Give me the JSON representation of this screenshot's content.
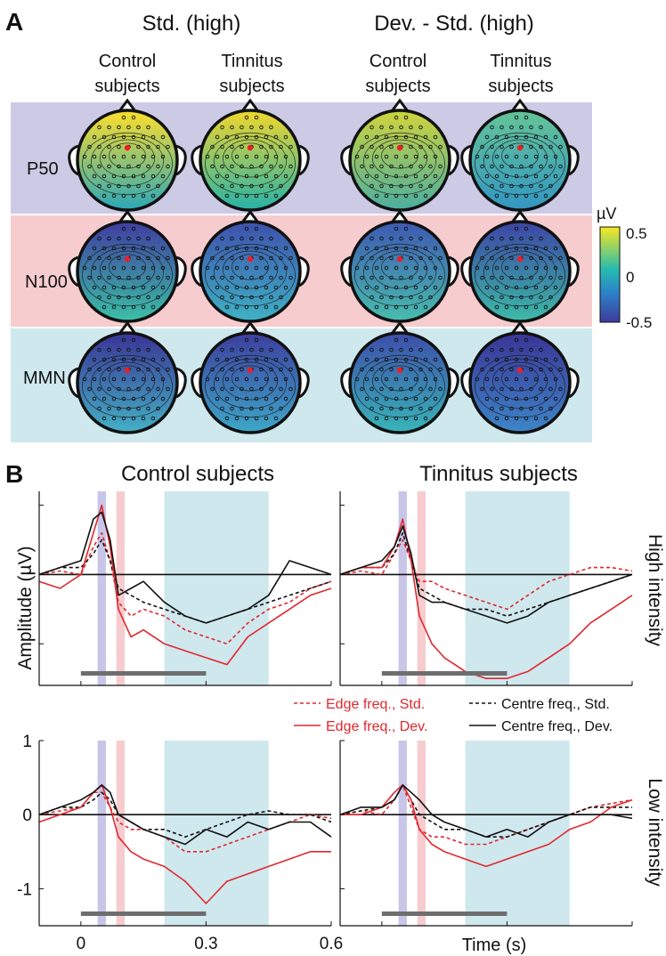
{
  "panel_a": {
    "label": "A",
    "group_titles": [
      "Std. (high)",
      "Dev. - Std. (high)"
    ],
    "column_labels": [
      {
        "line1": "Control",
        "line2": "subjects"
      },
      {
        "line1": "Tinnitus",
        "line2": "subjects"
      },
      {
        "line1": "Control",
        "line2": "subjects"
      },
      {
        "line1": "Tinnitus",
        "line2": "subjects"
      }
    ],
    "row_labels": [
      "P50",
      "N100",
      "MMN"
    ],
    "row_colors": [
      "#cdcae6",
      "#f6cccf",
      "#cfe8ee"
    ],
    "colorbar": {
      "unit": "µV",
      "max_label": "0.5",
      "mid_label": "0",
      "min_label": "-0.5",
      "colors": [
        "#f9e721",
        "#24bbb0",
        "#2d7fc8",
        "#3e3b9a"
      ]
    }
  },
  "panel_b": {
    "label": "B",
    "column_titles": [
      "Control subjects",
      "Tinnitus subjects"
    ],
    "row_titles": [
      "High intensity",
      "Low intensity"
    ],
    "ylabel": "Amplitude (µV)",
    "xlabel": "Time (s)",
    "x_ticks": [
      "0",
      "0.3",
      "0.6"
    ],
    "y_ticks": [
      "1",
      "0",
      "-1"
    ],
    "legend": [
      {
        "label": "Edge freq., Std.",
        "color": "#e0282e",
        "style": "dashed"
      },
      {
        "label": "Centre freq., Std.",
        "color": "#111111",
        "style": "dashed"
      },
      {
        "label": "Edge freq., Dev.",
        "color": "#e0282e",
        "style": "solid"
      },
      {
        "label": "Centre freq., Dev.",
        "color": "#111111",
        "style": "solid"
      }
    ],
    "shading": [
      {
        "start": 0.04,
        "end": 0.06,
        "color": "#c8c6e8"
      },
      {
        "start": 0.085,
        "end": 0.105,
        "color": "#f6cccf"
      },
      {
        "start": 0.2,
        "end": 0.45,
        "color": "#cfe8ee"
      }
    ],
    "bar_color": "#6e6e6e"
  },
  "chart_data": [
    {
      "type": "line",
      "title": "Control subjects",
      "row": "High intensity",
      "xlim": [
        -0.1,
        0.6
      ],
      "ylim": [
        -1.6,
        1.2
      ],
      "x": [
        -0.1,
        -0.05,
        0,
        0.03,
        0.05,
        0.07,
        0.09,
        0.12,
        0.15,
        0.2,
        0.25,
        0.3,
        0.35,
        0.4,
        0.45,
        0.5,
        0.55,
        0.6
      ],
      "series": [
        {
          "name": "Edge freq., Std.",
          "values": [
            0,
            0.05,
            0,
            0.4,
            0.6,
            0.2,
            -0.4,
            -0.6,
            -0.5,
            -0.6,
            -0.8,
            -0.9,
            -1.0,
            -0.7,
            -0.5,
            -0.4,
            -0.2,
            -0.1
          ]
        },
        {
          "name": "Centre freq., Std.",
          "values": [
            0,
            0.1,
            0.1,
            0.3,
            0.5,
            0.2,
            -0.2,
            -0.3,
            -0.4,
            -0.5,
            -0.6,
            -0.7,
            -0.6,
            -0.5,
            -0.4,
            -0.3,
            -0.2,
            -0.1
          ]
        },
        {
          "name": "Edge freq., Dev.",
          "values": [
            -0.1,
            -0.2,
            0,
            0.6,
            1.0,
            0.4,
            -0.5,
            -0.9,
            -0.8,
            -1.0,
            -1.1,
            -1.2,
            -1.3,
            -0.9,
            -0.7,
            -0.5,
            -0.3,
            -0.2
          ]
        },
        {
          "name": "Centre freq., Dev.",
          "values": [
            0,
            0.1,
            0.2,
            0.8,
            0.9,
            0.5,
            -0.3,
            -0.2,
            -0.1,
            -0.4,
            -0.6,
            -0.7,
            -0.6,
            -0.5,
            -0.3,
            0.2,
            0.1,
            0
          ]
        }
      ]
    },
    {
      "type": "line",
      "title": "Tinnitus subjects",
      "row": "High intensity",
      "xlim": [
        -0.1,
        0.6
      ],
      "ylim": [
        -1.6,
        1.2
      ],
      "x": [
        -0.1,
        -0.05,
        0,
        0.03,
        0.05,
        0.07,
        0.09,
        0.12,
        0.15,
        0.2,
        0.25,
        0.3,
        0.35,
        0.4,
        0.45,
        0.5,
        0.55,
        0.6
      ],
      "series": [
        {
          "name": "Edge freq., Std.",
          "values": [
            0,
            0.05,
            0,
            0.3,
            0.5,
            0.2,
            -0.1,
            -0.1,
            -0.2,
            -0.3,
            -0.4,
            -0.5,
            -0.3,
            -0.1,
            0,
            0.1,
            0.1,
            0.05
          ]
        },
        {
          "name": "Centre freq., Std.",
          "values": [
            0,
            0.1,
            0.1,
            0.3,
            0.6,
            0.2,
            -0.2,
            -0.3,
            -0.4,
            -0.5,
            -0.5,
            -0.6,
            -0.5,
            -0.4,
            -0.3,
            -0.2,
            -0.1,
            0
          ]
        },
        {
          "name": "Edge freq., Dev.",
          "values": [
            0,
            0.1,
            0.1,
            0.4,
            0.8,
            0.2,
            -0.6,
            -1.0,
            -1.2,
            -1.4,
            -1.5,
            -1.5,
            -1.4,
            -1.2,
            -1.0,
            -0.7,
            -0.5,
            -0.3
          ]
        },
        {
          "name": "Centre freq., Dev.",
          "values": [
            0,
            0.1,
            0.2,
            0.4,
            0.7,
            0.3,
            -0.3,
            -0.4,
            -0.4,
            -0.5,
            -0.6,
            -0.7,
            -0.6,
            -0.4,
            -0.3,
            -0.2,
            -0.1,
            0
          ]
        }
      ]
    },
    {
      "type": "line",
      "title": "Control subjects",
      "row": "Low intensity",
      "xlim": [
        -0.1,
        0.6
      ],
      "ylim": [
        -1.5,
        1.0
      ],
      "x": [
        -0.1,
        -0.05,
        0,
        0.03,
        0.05,
        0.07,
        0.09,
        0.12,
        0.15,
        0.2,
        0.25,
        0.3,
        0.35,
        0.4,
        0.45,
        0.5,
        0.55,
        0.6
      ],
      "series": [
        {
          "name": "Edge freq., Std.",
          "values": [
            0,
            0.05,
            0.1,
            0.3,
            0.3,
            0.1,
            -0.1,
            -0.2,
            -0.2,
            -0.3,
            -0.5,
            -0.5,
            -0.4,
            -0.3,
            -0.2,
            -0.1,
            0,
            -0.05
          ]
        },
        {
          "name": "Centre freq., Std.",
          "values": [
            0,
            0.1,
            0.1,
            0.2,
            0.3,
            0.2,
            0,
            -0.1,
            -0.2,
            -0.2,
            -0.3,
            -0.2,
            -0.1,
            0,
            0.05,
            0,
            0,
            -0.1
          ]
        },
        {
          "name": "Edge freq., Dev.",
          "values": [
            -0.1,
            0,
            0.1,
            0.3,
            0.4,
            0.1,
            -0.3,
            -0.5,
            -0.6,
            -0.7,
            -0.9,
            -1.2,
            -0.9,
            -0.8,
            -0.7,
            -0.6,
            -0.5,
            -0.5
          ]
        },
        {
          "name": "Centre freq., Dev.",
          "values": [
            0,
            0.1,
            0.2,
            0.3,
            0.4,
            0.3,
            0,
            -0.1,
            -0.2,
            -0.3,
            -0.4,
            -0.2,
            -0.3,
            -0.1,
            -0.2,
            -0.1,
            -0.1,
            -0.3
          ]
        }
      ]
    },
    {
      "type": "line",
      "title": "Tinnitus subjects",
      "row": "Low intensity",
      "xlim": [
        -0.1,
        0.6
      ],
      "ylim": [
        -1.5,
        1.0
      ],
      "x": [
        -0.1,
        -0.05,
        0,
        0.03,
        0.05,
        0.07,
        0.09,
        0.12,
        0.15,
        0.2,
        0.25,
        0.3,
        0.35,
        0.4,
        0.45,
        0.5,
        0.55,
        0.6
      ],
      "series": [
        {
          "name": "Edge freq., Std.",
          "values": [
            0,
            0.05,
            0,
            0.2,
            0.4,
            0.1,
            -0.2,
            -0.3,
            -0.3,
            -0.4,
            -0.4,
            -0.3,
            -0.2,
            -0.1,
            0,
            0.1,
            0.15,
            0.2
          ]
        },
        {
          "name": "Centre freq., Std.",
          "values": [
            0,
            0.05,
            0.1,
            0.2,
            0.4,
            0.2,
            0,
            -0.1,
            -0.2,
            -0.2,
            -0.3,
            -0.3,
            -0.2,
            -0.1,
            0,
            0.1,
            0.1,
            0.1
          ]
        },
        {
          "name": "Edge freq., Dev.",
          "values": [
            0,
            0,
            0.1,
            0.3,
            0.4,
            0.2,
            -0.2,
            -0.4,
            -0.5,
            -0.6,
            -0.7,
            -0.6,
            -0.5,
            -0.4,
            -0.2,
            -0.1,
            0.1,
            0.2
          ]
        },
        {
          "name": "Centre freq., Dev.",
          "values": [
            0,
            0.1,
            0.1,
            0.2,
            0.4,
            0.3,
            0.2,
            0,
            -0.1,
            -0.2,
            -0.3,
            -0.2,
            -0.3,
            -0.1,
            0,
            0,
            0,
            -0.05
          ]
        }
      ]
    }
  ]
}
